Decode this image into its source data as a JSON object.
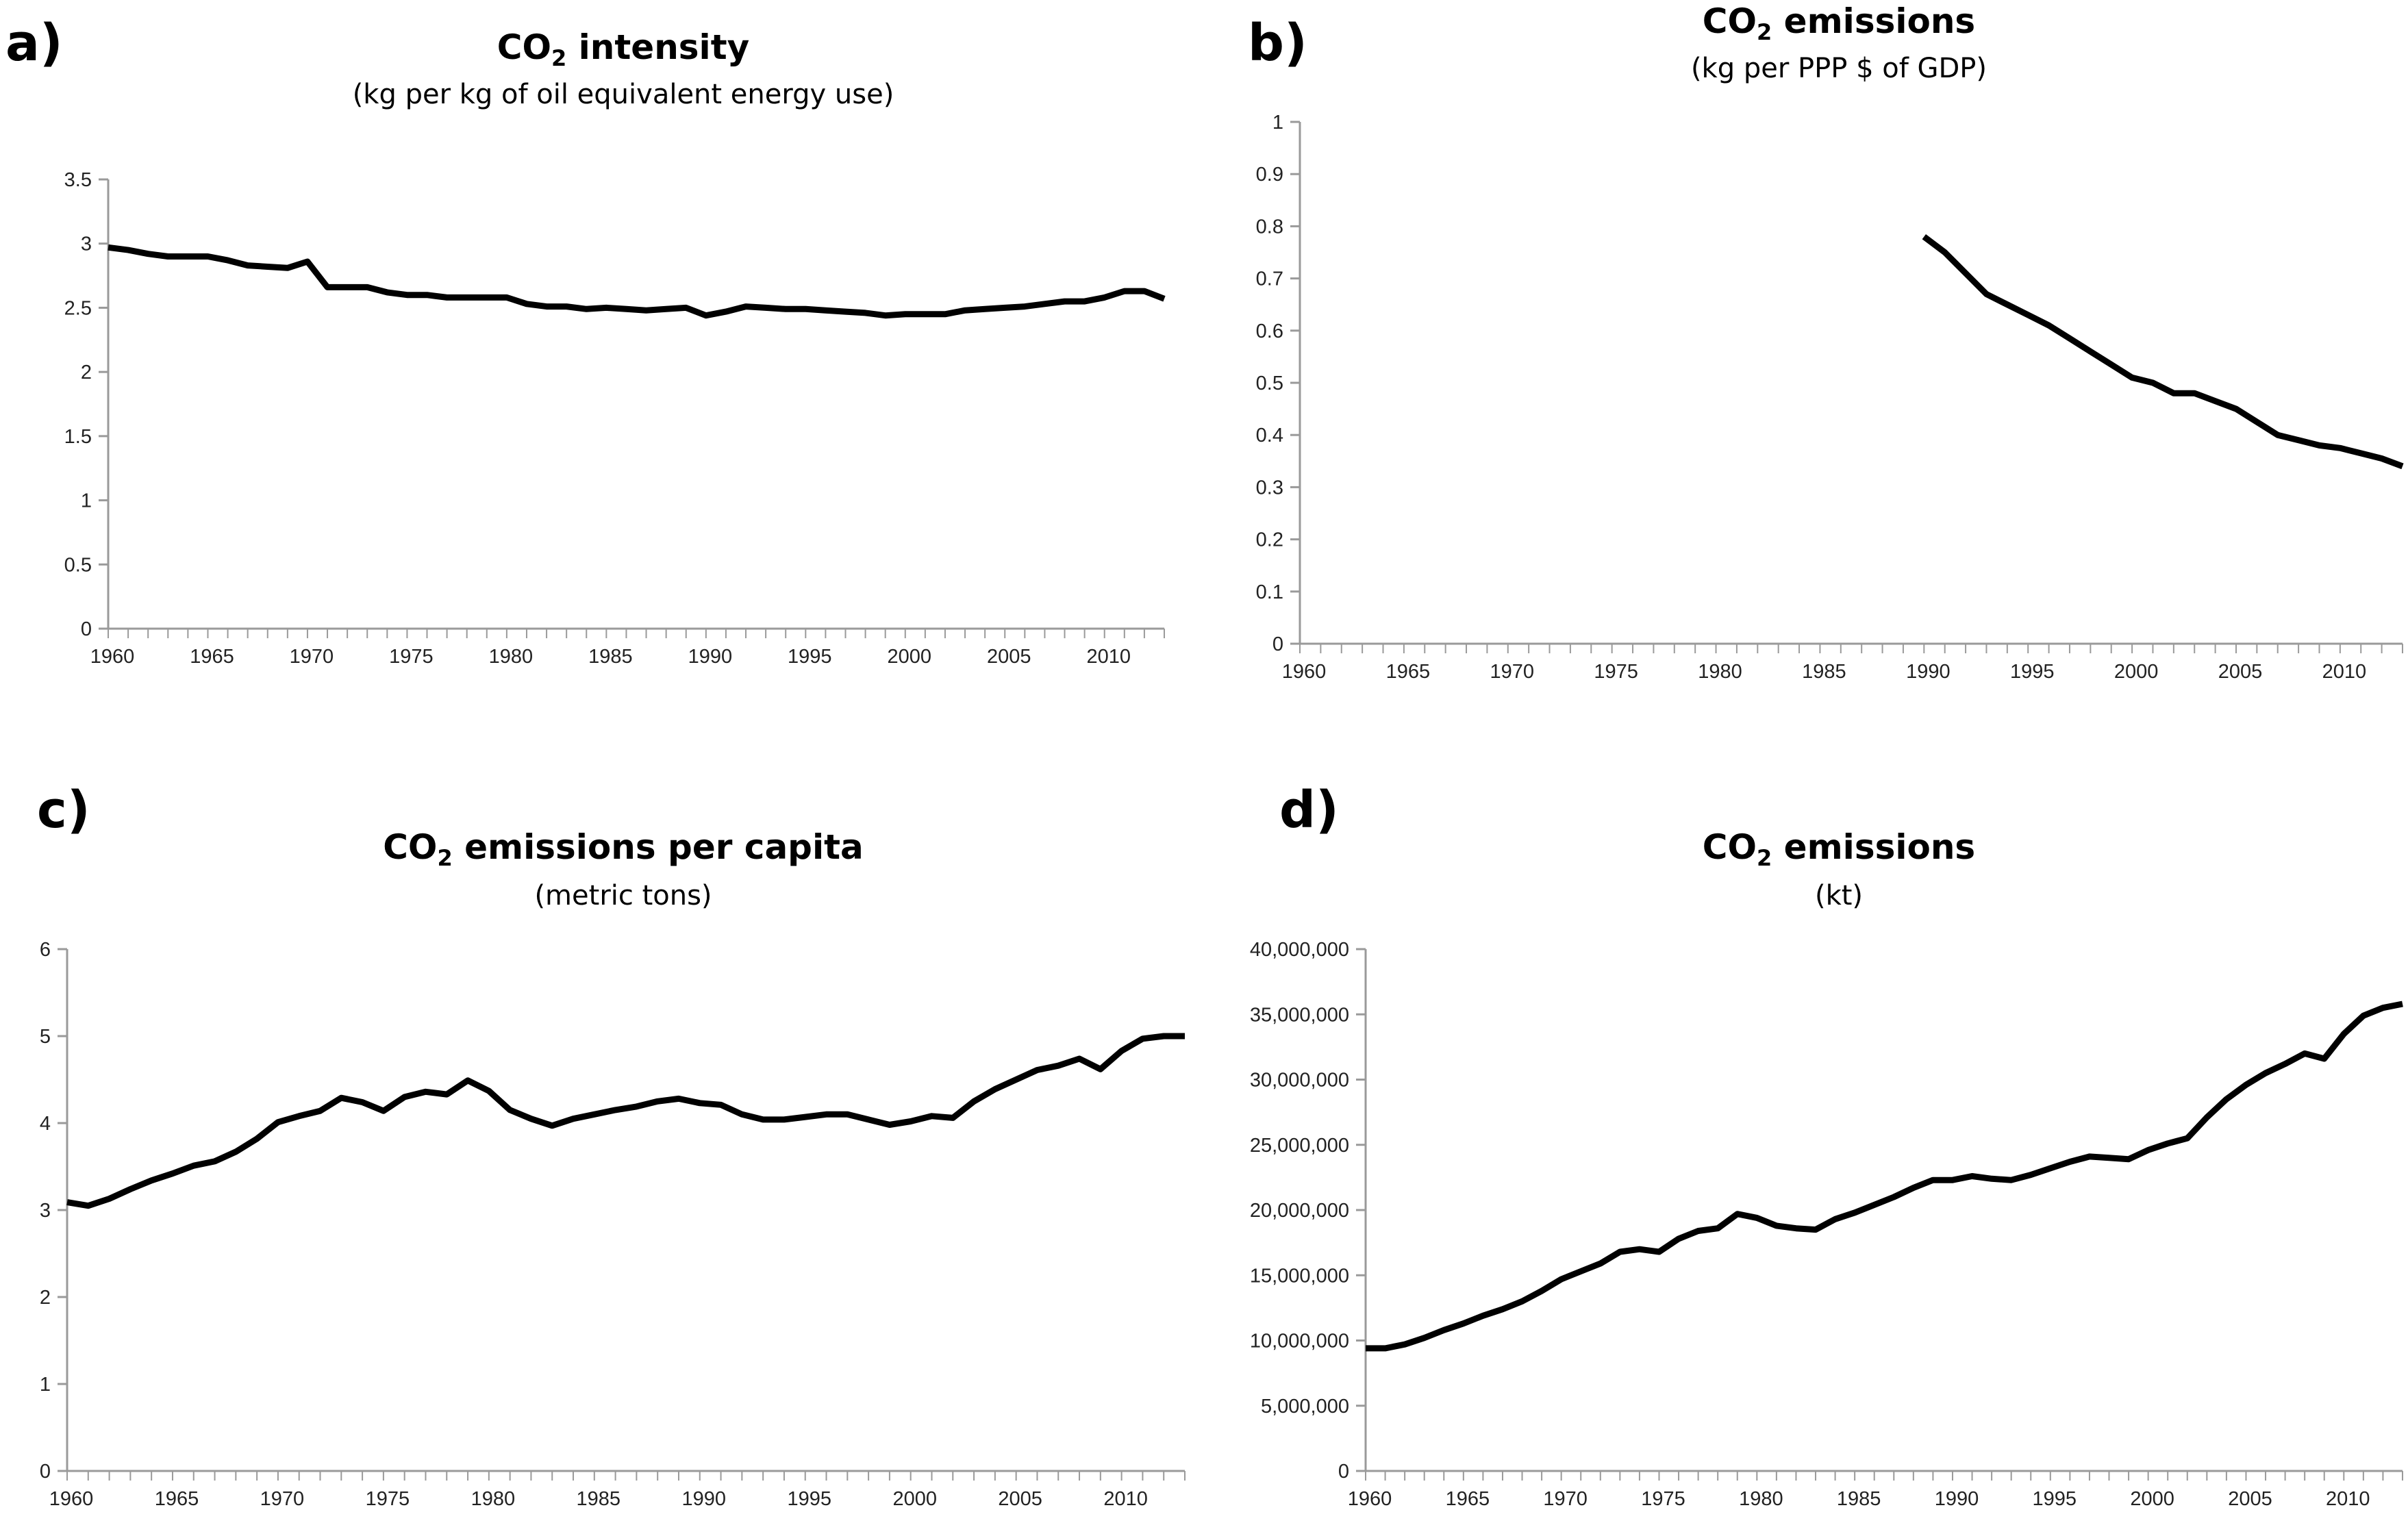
{
  "chart_data": [
    {
      "panel": "a)",
      "type": "line",
      "title_main": "CO",
      "title_sub": "2",
      "title_rest": " intensity",
      "subtitle": "(kg per kg of oil equivalent energy use)",
      "xlim": [
        1960,
        2013
      ],
      "ylim": [
        0,
        3.5
      ],
      "x_ticks": [
        "1960",
        "1965",
        "1970",
        "1975",
        "1980",
        "1985",
        "1990",
        "1995",
        "2000",
        "2005",
        "2010"
      ],
      "y_ticks": [
        "0",
        "0.5",
        "1",
        "1.5",
        "2",
        "2.5",
        "3",
        "3.5"
      ],
      "series": [
        {
          "name": "CO2 intensity",
          "x": [
            1960,
            1961,
            1962,
            1963,
            1964,
            1965,
            1966,
            1967,
            1968,
            1969,
            1970,
            1971,
            1972,
            1973,
            1974,
            1975,
            1976,
            1977,
            1978,
            1979,
            1980,
            1981,
            1982,
            1983,
            1984,
            1985,
            1986,
            1987,
            1988,
            1989,
            1990,
            1991,
            1992,
            1993,
            1994,
            1995,
            1996,
            1997,
            1998,
            1999,
            2000,
            2001,
            2002,
            2003,
            2004,
            2005,
            2006,
            2007,
            2008,
            2009,
            2010,
            2011,
            2012,
            2013
          ],
          "values": [
            2.97,
            2.95,
            2.92,
            2.9,
            2.9,
            2.9,
            2.87,
            2.83,
            2.82,
            2.81,
            2.86,
            2.66,
            2.66,
            2.66,
            2.62,
            2.6,
            2.6,
            2.58,
            2.58,
            2.58,
            2.58,
            2.53,
            2.51,
            2.51,
            2.49,
            2.5,
            2.49,
            2.48,
            2.49,
            2.5,
            2.44,
            2.47,
            2.51,
            2.5,
            2.49,
            2.49,
            2.48,
            2.47,
            2.46,
            2.44,
            2.45,
            2.45,
            2.45,
            2.48,
            2.49,
            2.5,
            2.51,
            2.53,
            2.55,
            2.55,
            2.58,
            2.63,
            2.63,
            2.57
          ]
        }
      ]
    },
    {
      "panel": "b)",
      "type": "line",
      "title_main": "CO",
      "title_sub": "2",
      "title_rest": " emissions",
      "subtitle": "(kg per PPP $ of GDP)",
      "xlim": [
        1960,
        2013
      ],
      "ylim": [
        0,
        1
      ],
      "x_ticks": [
        "1960",
        "1965",
        "1970",
        "1975",
        "1980",
        "1985",
        "1990",
        "1995",
        "2000",
        "2005",
        "2010"
      ],
      "y_ticks": [
        "0",
        "0.1",
        "0.2",
        "0.3",
        "0.4",
        "0.5",
        "0.6",
        "0.7",
        "0.8",
        "0.9",
        "1"
      ],
      "series": [
        {
          "name": "CO2 emissions per PPP $",
          "x": [
            1990,
            1991,
            1992,
            1993,
            1994,
            1995,
            1996,
            1997,
            1998,
            1999,
            2000,
            2001,
            2002,
            2003,
            2004,
            2005,
            2006,
            2007,
            2008,
            2009,
            2010,
            2011,
            2012,
            2013
          ],
          "values": [
            0.78,
            0.75,
            0.71,
            0.67,
            0.65,
            0.63,
            0.61,
            0.585,
            0.56,
            0.535,
            0.51,
            0.5,
            0.48,
            0.48,
            0.465,
            0.45,
            0.425,
            0.4,
            0.39,
            0.38,
            0.375,
            0.365,
            0.355,
            0.34
          ]
        }
      ]
    },
    {
      "panel": "c)",
      "type": "line",
      "title_main": "CO",
      "title_sub": "2",
      "title_rest": " emissions per capita",
      "subtitle": "(metric tons)",
      "xlim": [
        1960,
        2013
      ],
      "ylim": [
        0,
        6
      ],
      "x_ticks": [
        "1960",
        "1965",
        "1970",
        "1975",
        "1980",
        "1985",
        "1990",
        "1995",
        "2000",
        "2005",
        "2010"
      ],
      "y_ticks": [
        "0",
        "1",
        "2",
        "3",
        "4",
        "5",
        "6"
      ],
      "series": [
        {
          "name": "CO2 emissions per capita",
          "x": [
            1960,
            1961,
            1962,
            1963,
            1964,
            1965,
            1966,
            1967,
            1968,
            1969,
            1970,
            1971,
            1972,
            1973,
            1974,
            1975,
            1976,
            1977,
            1978,
            1979,
            1980,
            1981,
            1982,
            1983,
            1984,
            1985,
            1986,
            1987,
            1988,
            1989,
            1990,
            1991,
            1992,
            1993,
            1994,
            1995,
            1996,
            1997,
            1998,
            1999,
            2000,
            2001,
            2002,
            2003,
            2004,
            2005,
            2006,
            2007,
            2008,
            2009,
            2010,
            2011,
            2012,
            2013
          ],
          "values": [
            3.09,
            3.05,
            3.13,
            3.24,
            3.34,
            3.42,
            3.51,
            3.56,
            3.67,
            3.82,
            4.01,
            4.08,
            4.14,
            4.29,
            4.24,
            4.14,
            4.3,
            4.36,
            4.33,
            4.49,
            4.37,
            4.15,
            4.05,
            3.97,
            4.05,
            4.1,
            4.15,
            4.19,
            4.25,
            4.28,
            4.23,
            4.21,
            4.1,
            4.04,
            4.04,
            4.07,
            4.1,
            4.1,
            4.04,
            3.98,
            4.02,
            4.08,
            4.06,
            4.25,
            4.39,
            4.5,
            4.61,
            4.66,
            4.74,
            4.62,
            4.83,
            4.97,
            5.0,
            5.0
          ]
        }
      ]
    },
    {
      "panel": "d)",
      "type": "line",
      "title_main": "CO",
      "title_sub": "2",
      "title_rest": " emissions",
      "subtitle": "(kt)",
      "xlim": [
        1960,
        2013
      ],
      "ylim": [
        0,
        40000000
      ],
      "x_ticks": [
        "1960",
        "1965",
        "1970",
        "1975",
        "1980",
        "1985",
        "1990",
        "1995",
        "2000",
        "2005",
        "2010"
      ],
      "y_ticks": [
        "0",
        "5,000,000",
        "10,000,000",
        "15,000,000",
        "20,000,000",
        "25,000,000",
        "30,000,000",
        "35,000,000",
        "40,000,000"
      ],
      "series": [
        {
          "name": "CO2 emissions (kt)",
          "x": [
            1960,
            1961,
            1962,
            1963,
            1964,
            1965,
            1966,
            1967,
            1968,
            1969,
            1970,
            1971,
            1972,
            1973,
            1974,
            1975,
            1976,
            1977,
            1978,
            1979,
            1980,
            1981,
            1982,
            1983,
            1984,
            1985,
            1986,
            1987,
            1988,
            1989,
            1990,
            1991,
            1992,
            1993,
            1994,
            1995,
            1996,
            1997,
            1998,
            1999,
            2000,
            2001,
            2002,
            2003,
            2004,
            2005,
            2006,
            2007,
            2008,
            2009,
            2010,
            2011,
            2012,
            2013
          ],
          "values": [
            9400000,
            9400000,
            9700000,
            10200000,
            10800000,
            11300000,
            11900000,
            12400000,
            13000000,
            13800000,
            14700000,
            15300000,
            15900000,
            16800000,
            17000000,
            16800000,
            17800000,
            18400000,
            18600000,
            19700000,
            19400000,
            18800000,
            18600000,
            18500000,
            19300000,
            19800000,
            20400000,
            21000000,
            21700000,
            22300000,
            22300000,
            22600000,
            22400000,
            22300000,
            22700000,
            23200000,
            23700000,
            24100000,
            24000000,
            23900000,
            24600000,
            25100000,
            25500000,
            27100000,
            28500000,
            29600000,
            30500000,
            31200000,
            32000000,
            31600000,
            33500000,
            34900000,
            35500000,
            35800000
          ]
        }
      ]
    }
  ]
}
